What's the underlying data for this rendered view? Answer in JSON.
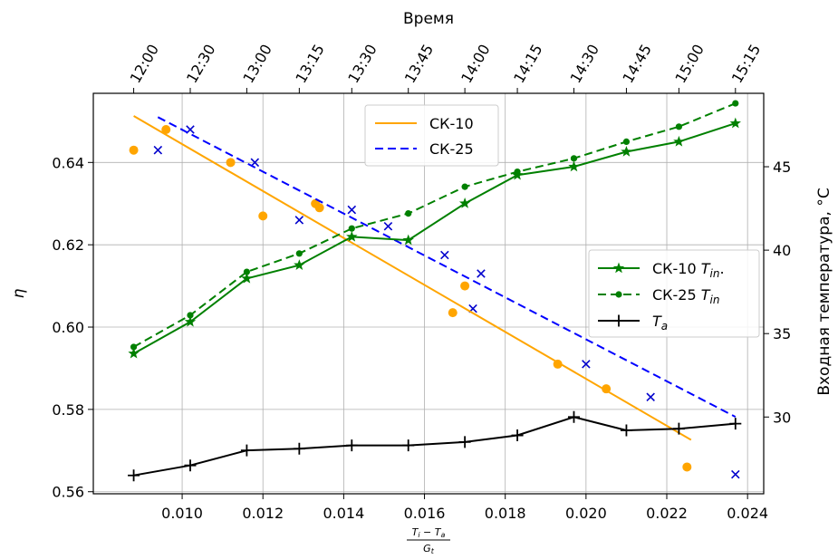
{
  "chart_data": {
    "type": "line",
    "title": "",
    "xlabel": "(T_i − T_a) / G_t",
    "xlabel_parts": {
      "num_a": "T",
      "num_a_sub": "i",
      "minus": " − ",
      "num_b": "T",
      "num_b_sub": "a",
      "den": "G",
      "den_sub": "t"
    },
    "ylabel": "η",
    "y2label": "Входная температура, °C",
    "top_xlabel": "Время",
    "xlim": [
      0.0078,
      0.0244
    ],
    "ylim": [
      0.5595,
      0.6568
    ],
    "y2lim": [
      25.4,
      49.4
    ],
    "x_ticks": [
      0.01,
      0.012,
      0.014,
      0.016,
      0.018,
      0.02,
      0.022,
      0.024
    ],
    "x_tick_labels": [
      "0.010",
      "0.012",
      "0.014",
      "0.016",
      "0.018",
      "0.020",
      "0.022",
      "0.024"
    ],
    "y_ticks": [
      0.56,
      0.58,
      0.6,
      0.62,
      0.64
    ],
    "y_tick_labels": [
      "0.56",
      "0.58",
      "0.60",
      "0.62",
      "0.64"
    ],
    "y2_ticks": [
      30,
      35,
      40,
      45
    ],
    "y2_tick_labels": [
      "30",
      "35",
      "40",
      "45"
    ],
    "top_ticks": [
      {
        "x": 0.0088,
        "label": "12:00"
      },
      {
        "x": 0.0102,
        "label": "12:30"
      },
      {
        "x": 0.0116,
        "label": "13:00"
      },
      {
        "x": 0.0129,
        "label": "13:15"
      },
      {
        "x": 0.0142,
        "label": "13:30"
      },
      {
        "x": 0.0156,
        "label": "13:45"
      },
      {
        "x": 0.017,
        "label": "14:00"
      },
      {
        "x": 0.0183,
        "label": "14:15"
      },
      {
        "x": 0.0197,
        "label": "14:30"
      },
      {
        "x": 0.021,
        "label": "14:45"
      },
      {
        "x": 0.0223,
        "label": "15:00"
      },
      {
        "x": 0.0237,
        "label": "15:15"
      }
    ],
    "grid": true,
    "scatter_series": [
      {
        "name": "СК-10 points",
        "color": "#ffa500",
        "marker": "circle",
        "points": [
          [
            0.0088,
            0.643
          ],
          [
            0.0096,
            0.648
          ],
          [
            0.0112,
            0.64
          ],
          [
            0.012,
            0.627
          ],
          [
            0.0133,
            0.63
          ],
          [
            0.0134,
            0.629
          ],
          [
            0.0167,
            0.6035
          ],
          [
            0.017,
            0.61
          ],
          [
            0.0193,
            0.591
          ],
          [
            0.0205,
            0.585
          ],
          [
            0.0225,
            0.566
          ]
        ]
      },
      {
        "name": "СК-25 points",
        "color": "#0000cd",
        "marker": "x",
        "points": [
          [
            0.0094,
            0.643
          ],
          [
            0.0102,
            0.648
          ],
          [
            0.0118,
            0.64
          ],
          [
            0.0129,
            0.626
          ],
          [
            0.0142,
            0.6285
          ],
          [
            0.0151,
            0.6245
          ],
          [
            0.0165,
            0.6175
          ],
          [
            0.0172,
            0.6045
          ],
          [
            0.0174,
            0.613
          ],
          [
            0.02,
            0.591
          ],
          [
            0.0216,
            0.583
          ],
          [
            0.0237,
            0.5642
          ]
        ]
      }
    ],
    "fit_series": [
      {
        "name": "СК-10",
        "color": "#ffa500",
        "dash": "",
        "points": [
          [
            0.0088,
            0.6513
          ],
          [
            0.0226,
            0.5726
          ]
        ]
      },
      {
        "name": "СК-25",
        "color": "#0000ff",
        "dash": "9,5",
        "points": [
          [
            0.0094,
            0.651
          ],
          [
            0.0237,
            0.5782
          ]
        ]
      }
    ],
    "temperature_series": [
      {
        "name": "СК-10 T_in",
        "color": "#008000",
        "marker": "star",
        "dash": "",
        "points": [
          [
            0.0088,
            33.8
          ],
          [
            0.0102,
            35.7
          ],
          [
            0.0116,
            38.3
          ],
          [
            0.0129,
            39.1
          ],
          [
            0.0142,
            40.8
          ],
          [
            0.0156,
            40.6
          ],
          [
            0.017,
            42.8
          ],
          [
            0.0183,
            44.5
          ],
          [
            0.0197,
            45.0
          ],
          [
            0.021,
            45.9
          ],
          [
            0.0223,
            46.5
          ],
          [
            0.0237,
            47.6
          ]
        ]
      },
      {
        "name": "СК-25 T_in",
        "color": "#008000",
        "marker": "dot",
        "dash": "9,5",
        "points": [
          [
            0.0088,
            34.2
          ],
          [
            0.0102,
            36.1
          ],
          [
            0.0116,
            38.7
          ],
          [
            0.0129,
            39.8
          ],
          [
            0.0142,
            41.3
          ],
          [
            0.0156,
            42.2
          ],
          [
            0.017,
            43.8
          ],
          [
            0.0183,
            44.7
          ],
          [
            0.0197,
            45.5
          ],
          [
            0.021,
            46.5
          ],
          [
            0.0223,
            47.4
          ],
          [
            0.0237,
            48.8
          ]
        ]
      },
      {
        "name": "T_a",
        "color": "#000000",
        "marker": "plus",
        "dash": "",
        "points": [
          [
            0.0088,
            26.5
          ],
          [
            0.0102,
            27.1
          ],
          [
            0.0116,
            28.0
          ],
          [
            0.0129,
            28.1
          ],
          [
            0.0142,
            28.3
          ],
          [
            0.0156,
            28.3
          ],
          [
            0.017,
            28.5
          ],
          [
            0.0183,
            28.9
          ],
          [
            0.0197,
            30.0
          ],
          [
            0.021,
            29.2
          ],
          [
            0.0223,
            29.3
          ],
          [
            0.0237,
            29.6
          ]
        ]
      }
    ],
    "legend_top": {
      "placement": "top-center",
      "items": [
        {
          "label": "СК-10",
          "color": "#ffa500",
          "dash": ""
        },
        {
          "label": "СК-25",
          "color": "#0000ff",
          "dash": "9,5"
        }
      ]
    },
    "legend_right": {
      "placement": "center-right",
      "items": [
        {
          "label": "СК-10",
          "sym": "T",
          "sub": "in",
          "suffix": ".",
          "color": "#008000",
          "dash": "",
          "marker": "star"
        },
        {
          "label": "СК-25",
          "sym": "T",
          "sub": "in",
          "suffix": "",
          "color": "#008000",
          "dash": "9,5",
          "marker": "dot"
        },
        {
          "label": "",
          "sym": "T",
          "sub": "a",
          "suffix": "",
          "color": "#000000",
          "dash": "",
          "marker": "plus"
        }
      ]
    }
  }
}
